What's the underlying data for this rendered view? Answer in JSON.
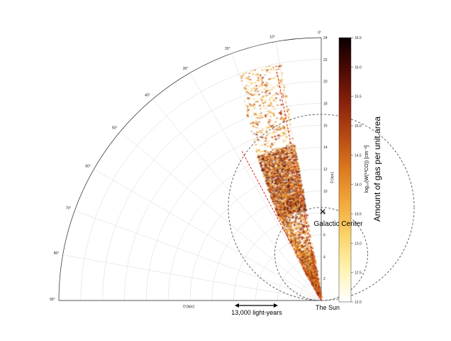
{
  "chart_data": {
    "type": "heatmap",
    "title": "",
    "subtitle": "",
    "projection": "polar wedge (longitude vs distance)",
    "radial_axis": {
      "label": "D [kpc]",
      "ticks": [
        2,
        4,
        6,
        8,
        10,
        12,
        14,
        16,
        18,
        20,
        22,
        24
      ],
      "range": [
        0,
        24
      ]
    },
    "radial_axis_bottom_label": "D [kpc]",
    "angular_axis": {
      "ticks": [
        0,
        10,
        20,
        30,
        40,
        50,
        60,
        70,
        80,
        90
      ],
      "tick_labels": [
        "0°",
        "10°",
        "20°",
        "30°",
        "40°",
        "50°",
        "60°",
        "70°",
        "80°",
        "90°"
      ],
      "range_deg": [
        0,
        90
      ]
    },
    "grid": true,
    "colorbar": {
      "label": "log₁₀(W(¹³CO)) [cm⁻²]",
      "label_right": "Amount of gas per unit area",
      "ticks": [
        "12.0",
        "12.5",
        "13.0",
        "13.5",
        "14.0",
        "14.5",
        "15.0",
        "15.5",
        "16.0",
        "16.5"
      ],
      "range": [
        12.0,
        16.5
      ],
      "colors": [
        "#ffffff",
        "#fff3b0",
        "#fbd46a",
        "#f2a93b",
        "#dd7a1f",
        "#b84a12",
        "#8a220c",
        "#4e0a04",
        "#0a0000"
      ]
    },
    "emission_region": {
      "longitude_deg": [
        10,
        32
      ],
      "distance_kpc": [
        0,
        22
      ],
      "peak_value": 15.8
    },
    "dashed_circles": [
      {
        "name": "solar circle",
        "center_distance_kpc": 8.5,
        "radius_kpc": 8.5,
        "color": "#555555"
      },
      {
        "name": "tangent circle",
        "center_distance_kpc": 4.25,
        "radius_kpc": 4.25,
        "color": "#555555"
      }
    ],
    "red_dashed_lines": [
      {
        "longitude_deg": 28,
        "distance_kpc": [
          0,
          15.5
        ]
      },
      {
        "longitude_deg": 11,
        "distance_kpc": [
          0,
          21.5
        ]
      }
    ]
  },
  "annotations": {
    "galactic_center": "Galactic Center",
    "galactic_center_marker": "×",
    "sun": "The Sun",
    "scale_bar": "13,000 light-years",
    "scale_bar_kpc": 4
  }
}
